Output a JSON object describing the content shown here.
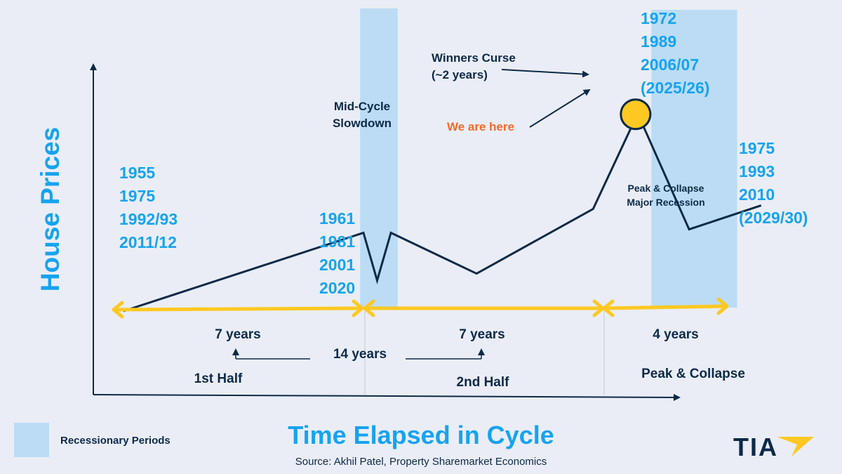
{
  "chart_data": {
    "type": "line",
    "title": "Time Elapsed in Cycle",
    "xlabel": "Time Elapsed in Cycle",
    "ylabel": "House Prices",
    "source": "Source: Akhil Patel, Property Sharemarket Economics",
    "legend": {
      "label": "Recessionary Periods",
      "color": "#bcdcf5",
      "position": "bottom-left"
    },
    "xlim": [
      0,
      18
    ],
    "ylim": [
      0,
      100
    ],
    "series": [
      {
        "name": "House Prices",
        "points": [
          {
            "x": 0.0,
            "y": 20
          },
          {
            "x": 7.0,
            "y": 43
          },
          {
            "x": 7.4,
            "y": 29
          },
          {
            "x": 7.8,
            "y": 43
          },
          {
            "x": 10.3,
            "y": 31
          },
          {
            "x": 13.7,
            "y": 50
          },
          {
            "x": 15.0,
            "y": 78
          },
          {
            "x": 16.5,
            "y": 44
          },
          {
            "x": 18.6,
            "y": 51
          }
        ]
      }
    ],
    "recessions": [
      {
        "name": "Mid-Cycle Slowdown",
        "x0": 6.9,
        "x1": 8.0
      },
      {
        "name": "Peak & Collapse Major Recession",
        "x0": 15.4,
        "x1": 17.9
      }
    ],
    "phases": [
      {
        "name": "1st Half",
        "duration": "7 years",
        "x0": 0.0,
        "x1": 7.0
      },
      {
        "name": "2nd Half",
        "duration": "7 years",
        "x0": 7.0,
        "x1": 14.0
      },
      {
        "name": "Peak & Collapse",
        "duration": "4 years",
        "x0": 14.0,
        "x1": 18.0
      }
    ],
    "total_label": "14 years",
    "year_groups": {
      "start": [
        "1955",
        "1975",
        "1992/93",
        "2011/12"
      ],
      "mid_cycle": [
        "1961",
        "1981",
        "2001",
        "2020"
      ],
      "peak": [
        "1972",
        "1989",
        "2006/07",
        "(2025/26)"
      ],
      "trough": [
        "1975",
        "1993",
        "2010",
        "(2029/30)"
      ]
    },
    "annotations": {
      "mid_cycle": "Mid-Cycle Slowdown",
      "mid_cycle_line1": "Mid-Cycle",
      "mid_cycle_line2": "Slowdown",
      "winners_curse_line1": "Winners Curse",
      "winners_curse_line2": "(~2 years)",
      "we_are_here": "We are here",
      "peak_collapse_line1": "Peak & Collapse",
      "peak_collapse_line2": "Major Recession"
    }
  },
  "branding": {
    "logo_text": "TIA",
    "accent": "#fdc821",
    "navy": "#0c2a48"
  },
  "colors": {
    "blue_text": "#16a3f0",
    "recession_band": "#bcdcf5",
    "arrow": "#fdc821",
    "orange": "#ef6a2a",
    "background": "#eaedf5"
  }
}
